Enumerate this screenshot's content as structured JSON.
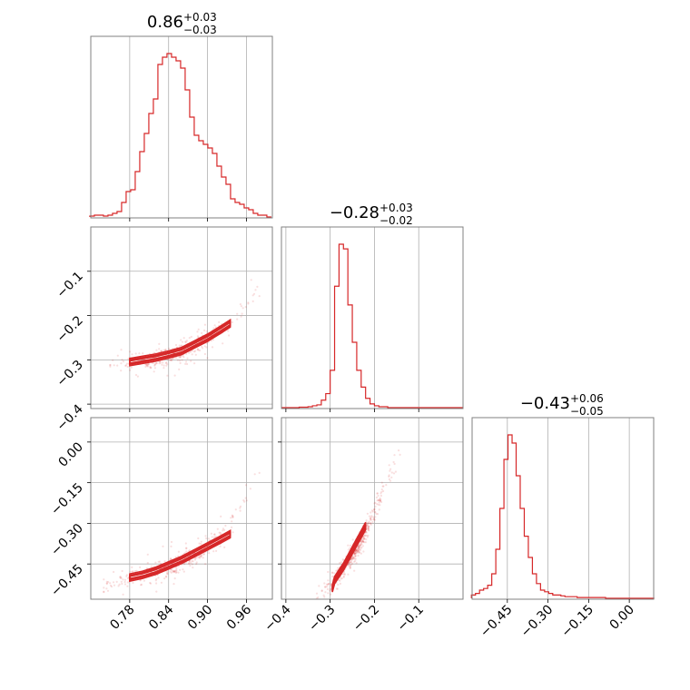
{
  "colors": {
    "accent": "#d62728",
    "grid": "#b0b0b0",
    "frame": "#808080"
  },
  "chart_data": [
    {
      "panel": "hist-p0",
      "type": "bar",
      "histtype": "step",
      "title": {
        "value": "0.86",
        "upper": "+0.03",
        "lower": "−0.03"
      },
      "xlim": [
        0.72,
        1.0
      ],
      "grid": true,
      "x": [
        0.722,
        0.729,
        0.736,
        0.743,
        0.75,
        0.757,
        0.764,
        0.771,
        0.778,
        0.785,
        0.792,
        0.799,
        0.806,
        0.813,
        0.82,
        0.827,
        0.834,
        0.841,
        0.848,
        0.855,
        0.862,
        0.869,
        0.876,
        0.883,
        0.89,
        0.897,
        0.904,
        0.911,
        0.918,
        0.925,
        0.932,
        0.939,
        0.946,
        0.953,
        0.96,
        0.967,
        0.974,
        0.981,
        0.988,
        0.995
      ],
      "values": [
        0.5,
        1,
        1,
        0.5,
        1,
        2,
        3,
        8,
        14,
        15,
        25,
        36,
        46,
        57,
        65,
        84,
        88,
        90,
        88,
        86,
        82,
        70,
        55,
        45,
        42,
        40,
        38,
        35,
        28,
        22,
        18,
        10,
        8,
        7,
        5,
        4,
        2,
        1,
        1,
        0
      ]
    },
    {
      "panel": "hist-p1",
      "type": "bar",
      "histtype": "step",
      "title": {
        "value": "−0.28",
        "upper": "+0.03",
        "lower": "−0.02"
      },
      "xlim": [
        -0.41,
        0.0
      ],
      "grid": true,
      "x": [
        -0.405,
        -0.395,
        -0.385,
        -0.375,
        -0.365,
        -0.355,
        -0.345,
        -0.335,
        -0.325,
        -0.315,
        -0.305,
        -0.295,
        -0.285,
        -0.275,
        -0.265,
        -0.255,
        -0.245,
        -0.235,
        -0.225,
        -0.215,
        -0.205,
        -0.195,
        -0.185,
        -0.175,
        -0.165,
        -0.155,
        -0.145,
        -0.135,
        -0.125,
        -0.115,
        -0.105,
        -0.095,
        -0.085,
        -0.075,
        -0.065,
        -0.055,
        -0.045,
        -0.035,
        -0.025,
        -0.015,
        -0.005
      ],
      "values": [
        0,
        0,
        0,
        0,
        0.5,
        0.5,
        1,
        2,
        3,
        8,
        15,
        40,
        130,
        175,
        170,
        110,
        70,
        40,
        22,
        10,
        4,
        2,
        1,
        1,
        0,
        0,
        0,
        0,
        0,
        0,
        0,
        0,
        0,
        0,
        0,
        0,
        0,
        0,
        0,
        0,
        0
      ]
    },
    {
      "panel": "hist-p2",
      "type": "bar",
      "histtype": "step",
      "title": {
        "value": "−0.43",
        "upper": "+0.06",
        "lower": "−0.05"
      },
      "xlim": [
        -0.58,
        0.09
      ],
      "xticks": [
        -0.45,
        -0.3,
        -0.15,
        0.0
      ],
      "xtick_labels": [
        "−0.45",
        "−0.30",
        "−0.15",
        "0.00"
      ],
      "grid": true,
      "x": [
        -0.575,
        -0.56,
        -0.545,
        -0.53,
        -0.515,
        -0.5,
        -0.485,
        -0.47,
        -0.455,
        -0.44,
        -0.425,
        -0.41,
        -0.395,
        -0.38,
        -0.365,
        -0.35,
        -0.335,
        -0.32,
        -0.305,
        -0.29,
        -0.275,
        -0.26,
        -0.245,
        -0.23,
        -0.215,
        -0.2,
        -0.185,
        -0.17,
        -0.155,
        -0.14,
        -0.125,
        -0.11,
        -0.095,
        -0.08,
        -0.065,
        -0.05,
        -0.035,
        -0.02,
        -0.005,
        0.01,
        0.025,
        0.04,
        0.055,
        0.07,
        0.085
      ],
      "values": [
        2,
        3,
        5,
        6,
        8,
        15,
        30,
        55,
        85,
        100,
        95,
        75,
        55,
        38,
        25,
        15,
        9,
        5,
        4,
        3,
        2,
        2,
        1.5,
        1,
        1,
        1,
        0.5,
        0.5,
        0.5,
        0.5,
        0.5,
        0.5,
        0.5,
        0,
        0,
        0,
        0,
        0,
        0,
        0,
        0,
        0,
        0,
        0,
        0
      ]
    },
    {
      "panel": "scatter-p0-p1",
      "type": "scatter",
      "xlim": [
        0.72,
        1.0
      ],
      "ylim": [
        -0.41,
        0.0
      ],
      "yticks": [
        -0.1,
        -0.2,
        -0.3,
        -0.4
      ],
      "ytick_labels": [
        "−0.1",
        "−0.2",
        "−0.3",
        "−0.4"
      ],
      "grid": true,
      "contour_line": {
        "x": [
          0.78,
          0.8,
          0.82,
          0.84,
          0.86,
          0.88,
          0.9,
          0.92,
          0.935
        ],
        "y": [
          -0.305,
          -0.3,
          -0.295,
          -0.288,
          -0.28,
          -0.265,
          -0.25,
          -0.232,
          -0.218
        ]
      },
      "trend": {
        "x": [
          0.75,
          0.8,
          0.85,
          0.9,
          0.95,
          0.98
        ],
        "y": [
          -0.31,
          -0.305,
          -0.29,
          -0.255,
          -0.195,
          -0.145
        ]
      }
    },
    {
      "panel": "scatter-p0-p2",
      "type": "scatter",
      "xlim": [
        0.72,
        1.0
      ],
      "ylim": [
        -0.58,
        0.09
      ],
      "xticks": [
        0.78,
        0.84,
        0.9,
        0.96
      ],
      "xtick_labels": [
        "0.78",
        "0.84",
        "0.90",
        "0.96"
      ],
      "yticks": [
        0.0,
        -0.15,
        -0.3,
        -0.45
      ],
      "ytick_labels": [
        "0.00",
        "−0.15",
        "−0.30",
        "−0.45"
      ],
      "grid": true,
      "contour_line": {
        "x": [
          0.78,
          0.8,
          0.82,
          0.84,
          0.86,
          0.88,
          0.9,
          0.92,
          0.935
        ],
        "y": [
          -0.5,
          -0.49,
          -0.475,
          -0.455,
          -0.435,
          -0.41,
          -0.385,
          -0.36,
          -0.34
        ]
      },
      "trend": {
        "x": [
          0.74,
          0.8,
          0.85,
          0.9,
          0.95,
          0.98
        ],
        "y": [
          -0.53,
          -0.49,
          -0.45,
          -0.39,
          -0.25,
          -0.12
        ]
      }
    },
    {
      "panel": "scatter-p1-p2",
      "type": "scatter",
      "xlim": [
        -0.41,
        0.0
      ],
      "ylim": [
        -0.58,
        0.09
      ],
      "xticks": [
        -0.4,
        -0.3,
        -0.2,
        -0.1
      ],
      "xtick_labels": [
        "−0.4",
        "−0.3",
        "−0.2",
        "−0.1"
      ],
      "grid": true,
      "contour_line": {
        "x": [
          -0.295,
          -0.29,
          -0.28,
          -0.27,
          -0.26,
          -0.25,
          -0.24,
          -0.23,
          -0.22
        ],
        "y": [
          -0.54,
          -0.51,
          -0.485,
          -0.46,
          -0.43,
          -0.4,
          -0.37,
          -0.34,
          -0.31
        ]
      },
      "trend": {
        "x": [
          -0.33,
          -0.3,
          -0.27,
          -0.23,
          -0.19,
          -0.14
        ],
        "y": [
          -0.57,
          -0.53,
          -0.47,
          -0.37,
          -0.22,
          -0.02
        ]
      }
    }
  ]
}
